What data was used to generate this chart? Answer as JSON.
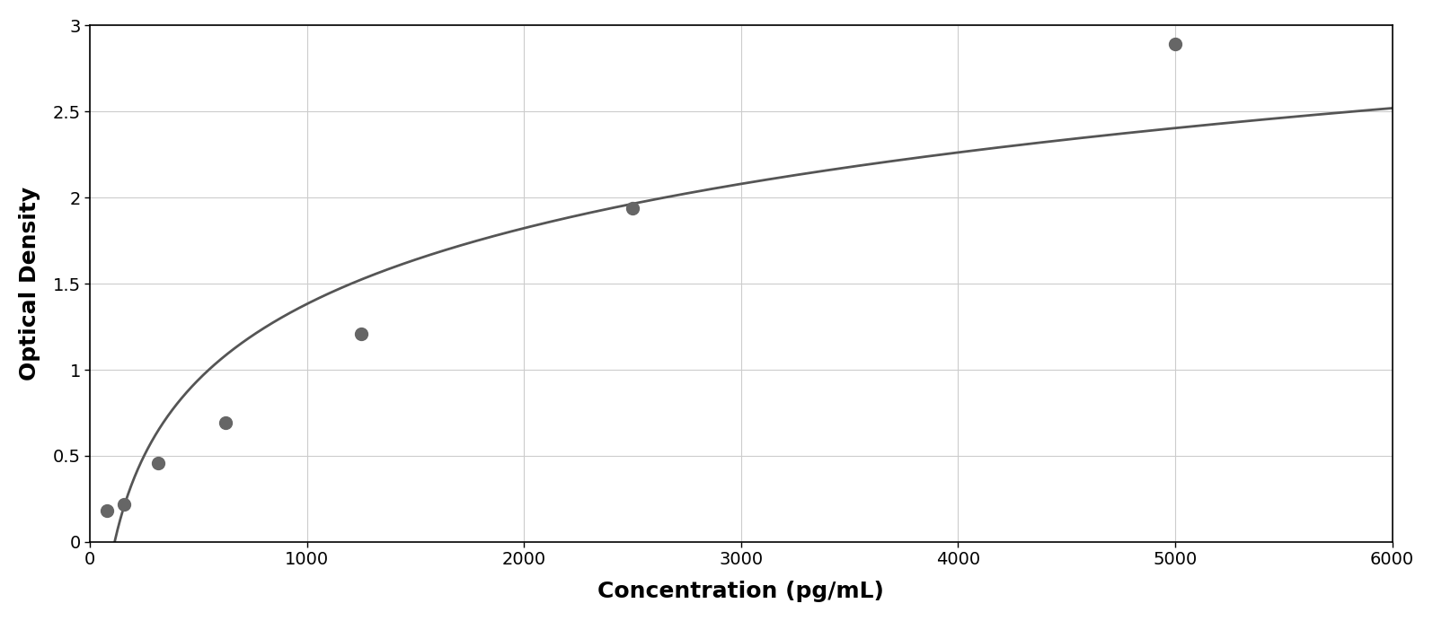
{
  "x_data": [
    78,
    156,
    313,
    625,
    1250,
    2500,
    5000
  ],
  "y_data": [
    0.18,
    0.22,
    0.46,
    0.69,
    1.21,
    1.94,
    2.89
  ],
  "xlabel": "Concentration (pg/mL)",
  "ylabel": "Optical Density",
  "xlim": [
    0,
    6000
  ],
  "ylim": [
    0,
    3.0
  ],
  "xticks": [
    0,
    1000,
    2000,
    3000,
    4000,
    5000,
    6000
  ],
  "yticks": [
    0,
    0.5,
    1.0,
    1.5,
    2.0,
    2.5,
    3.0
  ],
  "data_color": "#666666",
  "line_color": "#555555",
  "marker_size": 10,
  "line_width": 2.0,
  "background_color": "#ffffff",
  "grid_color": "#cccccc",
  "xlabel_fontsize": 18,
  "ylabel_fontsize": 18,
  "tick_fontsize": 14,
  "border_color": "#000000"
}
